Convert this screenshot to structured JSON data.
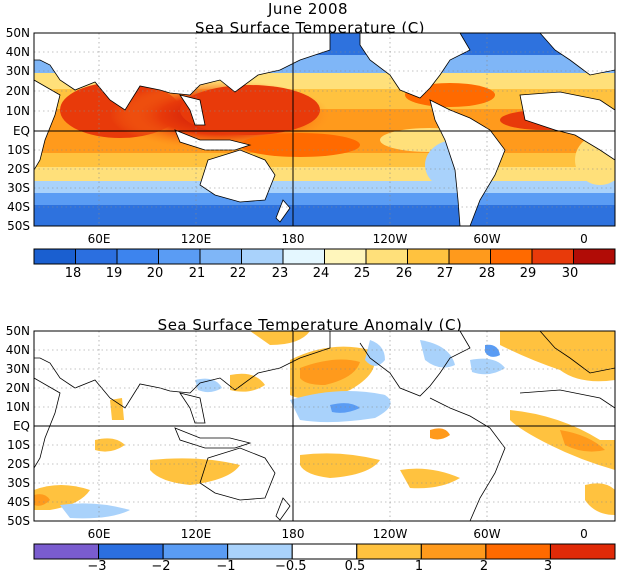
{
  "header": {
    "date": "June 2008"
  },
  "panels": [
    {
      "title": "Sea Surface Temperature (C)",
      "lat_labels": [
        "50N",
        "40N",
        "30N",
        "20N",
        "10N",
        "EQ",
        "10S",
        "20S",
        "30S",
        "40S",
        "50S"
      ],
      "lon_labels": [
        "60E",
        "120E",
        "180",
        "120W",
        "60W",
        "0"
      ],
      "colorbar": {
        "colors": [
          "#1a5fd0",
          "#2b6fe0",
          "#3d84ee",
          "#5a9cf4",
          "#7fb6f7",
          "#a9d2fb",
          "#e4f7ff",
          "#fff6bc",
          "#ffe07a",
          "#ffc23f",
          "#ff9a1c",
          "#ff6a00",
          "#e83a0a",
          "#b10c06"
        ],
        "labels": [
          "18",
          "19",
          "20",
          "21",
          "22",
          "23",
          "24",
          "25",
          "26",
          "27",
          "28",
          "29",
          "30"
        ]
      }
    },
    {
      "title": "Sea Surface Temperature Anomaly (C)",
      "lat_labels": [
        "50N",
        "40N",
        "30N",
        "20N",
        "10N",
        "EQ",
        "10S",
        "20S",
        "30S",
        "40S",
        "50S"
      ],
      "lon_labels": [
        "60E",
        "120E",
        "180",
        "120W",
        "60W",
        "0"
      ],
      "colorbar": {
        "colors": [
          "#7a5ccf",
          "#2b6fe0",
          "#5a9cf4",
          "#a9d2fb",
          "#ffffff",
          "#ffc23f",
          "#ff9a1c",
          "#ff6a00",
          "#e02a08"
        ],
        "labels": [
          "−3",
          "−2",
          "−1",
          "−0.5",
          "0.5",
          "1",
          "2",
          "3"
        ]
      }
    }
  ]
}
